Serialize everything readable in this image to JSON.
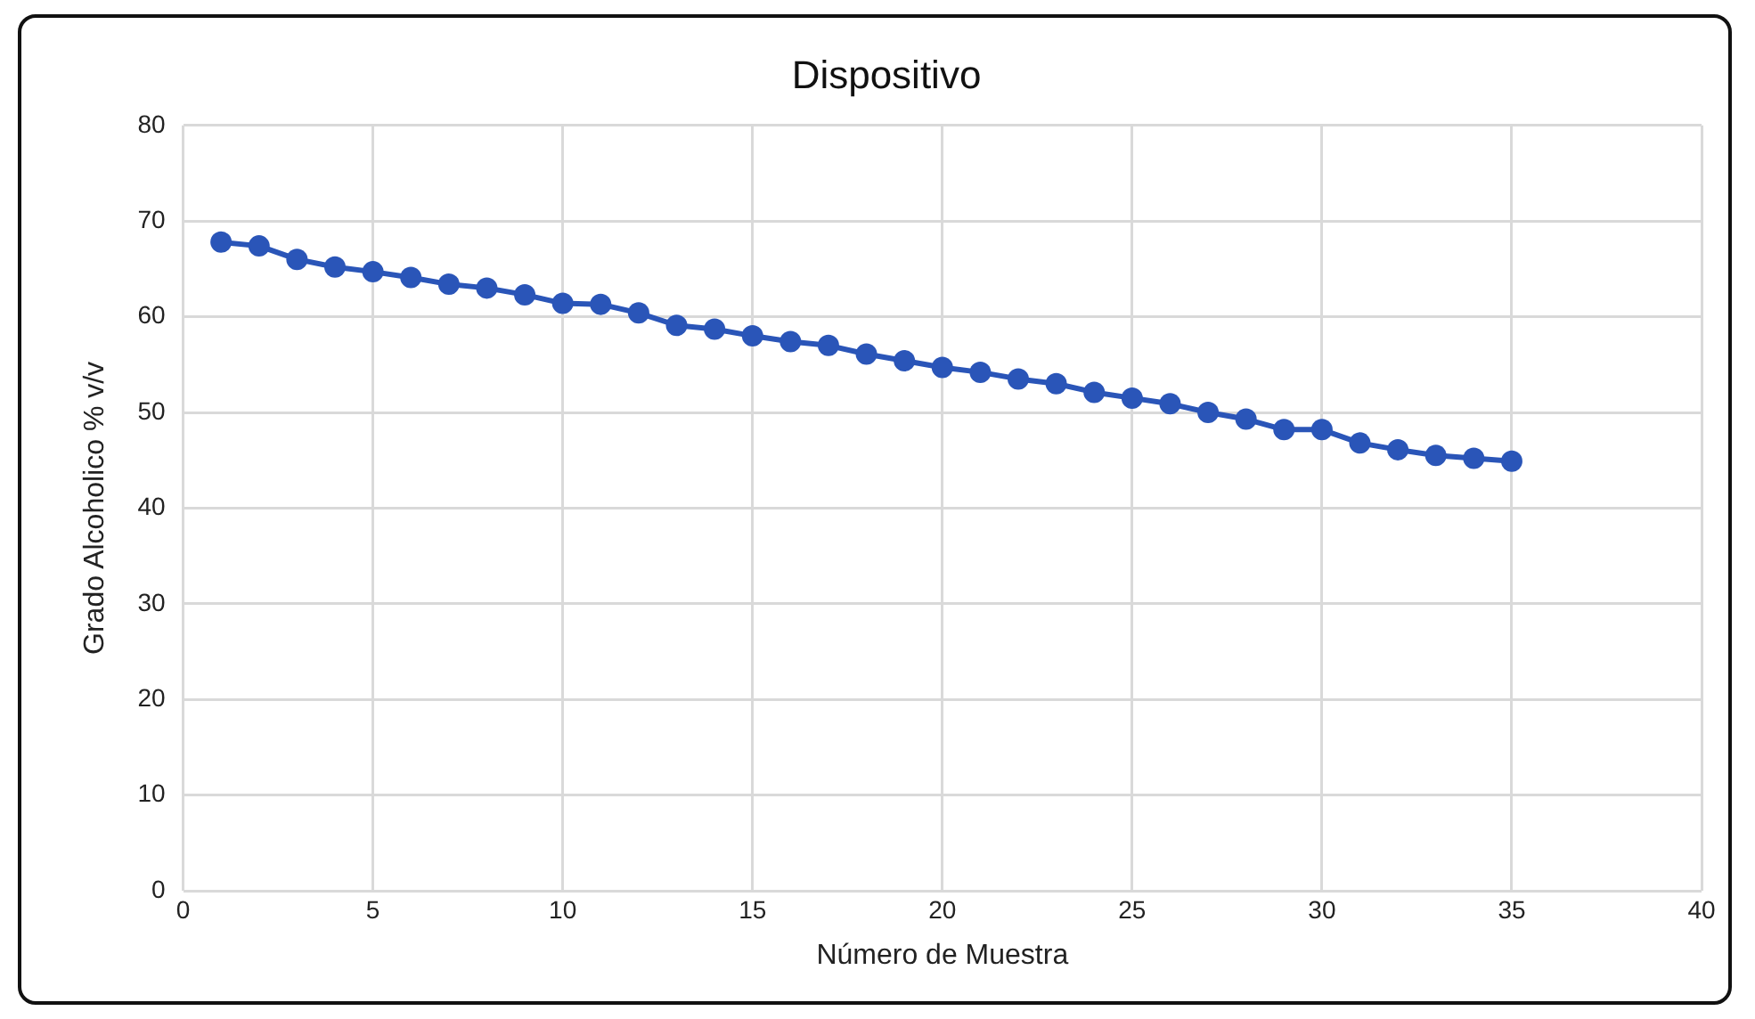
{
  "chart_data": {
    "type": "line",
    "title": "Dispositivo",
    "xlabel": "Número de Muestra",
    "ylabel": "Grado Alcoholico % v/v",
    "x": [
      1,
      2,
      3,
      4,
      5,
      6,
      7,
      8,
      9,
      10,
      11,
      12,
      13,
      14,
      15,
      16,
      17,
      18,
      19,
      20,
      21,
      22,
      23,
      24,
      25,
      26,
      27,
      28,
      29,
      30,
      31,
      32,
      33,
      34,
      35
    ],
    "series": [
      {
        "color": "#2a55b8",
        "values": [
          67.8,
          67.4,
          66.0,
          65.2,
          64.7,
          64.1,
          63.4,
          63.0,
          62.3,
          61.4,
          61.3,
          60.4,
          59.1,
          58.7,
          58.0,
          57.4,
          57.0,
          56.1,
          55.4,
          54.7,
          54.2,
          53.5,
          53.0,
          52.1,
          51.5,
          50.9,
          50.0,
          49.3,
          48.2,
          48.2,
          46.8,
          46.1,
          45.5,
          45.2,
          44.9
        ]
      }
    ],
    "xlim": [
      0,
      40
    ],
    "xticks": [
      0,
      5,
      10,
      15,
      20,
      25,
      30,
      35,
      40
    ],
    "ylim": [
      0,
      80
    ],
    "yticks": [
      0,
      10,
      20,
      30,
      40,
      50,
      60,
      70,
      80
    ],
    "grid": true,
    "marker": "circle",
    "line_style": "solid"
  }
}
